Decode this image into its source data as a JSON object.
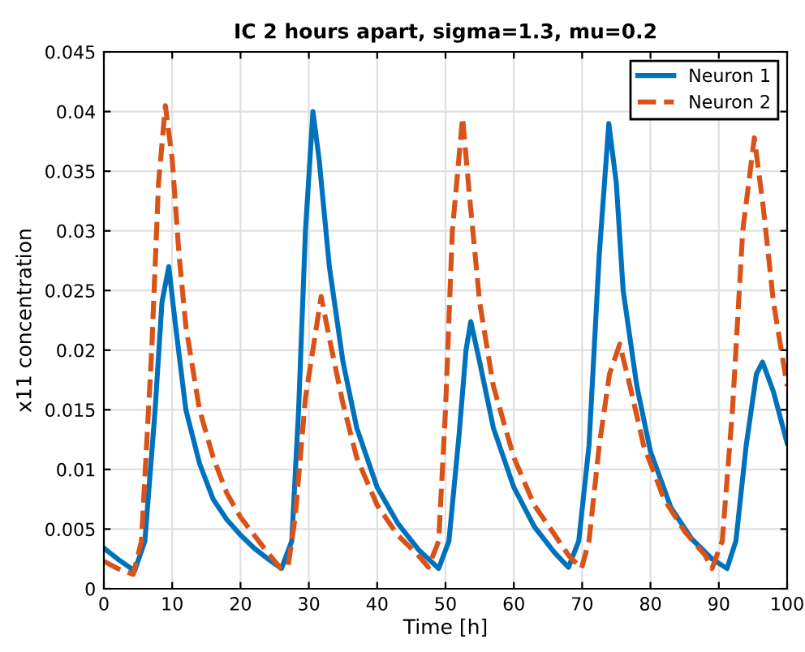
{
  "chart_data": {
    "type": "line",
    "title": "IC 2 hours apart, sigma=1.3, mu=0.2",
    "xlabel": "Time [h]",
    "ylabel": "x11 concentration",
    "xlim": [
      0,
      100
    ],
    "ylim": [
      0,
      0.045
    ],
    "xticks": [
      0,
      10,
      20,
      30,
      40,
      50,
      60,
      70,
      80,
      90,
      100
    ],
    "yticks": [
      0,
      0.005,
      0.01,
      0.015,
      0.02,
      0.025,
      0.03,
      0.035,
      0.04,
      0.045
    ],
    "grid": true,
    "legend": "top right",
    "series": [
      {
        "name": "Neuron 1",
        "color": "#0072bd",
        "line_style": "solid",
        "x": [
          0,
          2,
          4.5,
          6,
          7.5,
          8.5,
          9.5,
          10.5,
          12,
          14,
          16,
          18,
          20,
          22,
          24,
          26,
          27.5,
          28.5,
          29.5,
          30.6,
          31.5,
          33,
          35,
          37,
          40,
          43,
          46,
          49,
          50.5,
          52,
          53,
          53.7,
          55,
          57,
          60,
          63,
          66,
          68,
          69.5,
          71,
          72.5,
          73.9,
          75,
          76,
          78,
          80,
          83,
          86,
          89,
          91.2,
          92.5,
          94,
          95.5,
          96.4,
          98,
          100
        ],
        "values": [
          0.0034,
          0.0025,
          0.0015,
          0.004,
          0.015,
          0.024,
          0.027,
          0.022,
          0.015,
          0.0105,
          0.0075,
          0.0058,
          0.0045,
          0.0034,
          0.0025,
          0.0017,
          0.004,
          0.015,
          0.03,
          0.04,
          0.036,
          0.027,
          0.019,
          0.0135,
          0.0085,
          0.0055,
          0.0033,
          0.0017,
          0.004,
          0.013,
          0.02,
          0.0224,
          0.019,
          0.0135,
          0.0085,
          0.0052,
          0.003,
          0.0018,
          0.004,
          0.012,
          0.028,
          0.039,
          0.034,
          0.025,
          0.017,
          0.0115,
          0.0068,
          0.0042,
          0.0025,
          0.0017,
          0.004,
          0.012,
          0.018,
          0.019,
          0.0165,
          0.0122
        ]
      },
      {
        "name": "Neuron 2",
        "color": "#d95319",
        "line_style": "dashed",
        "x": [
          0,
          2,
          4.3,
          5.5,
          7,
          8,
          9,
          10,
          11,
          12,
          14,
          16,
          18,
          20,
          22,
          24,
          25.9,
          27,
          28,
          29.5,
          31.8,
          33,
          35,
          37,
          40,
          43,
          46,
          47.5,
          49,
          50,
          51,
          52.5,
          53.5,
          55,
          57,
          60,
          63,
          66,
          68,
          69.9,
          71,
          72.5,
          74,
          75.5,
          77,
          79,
          82,
          85,
          88,
          89,
          90.5,
          92,
          93.5,
          95.2,
          96.5,
          98,
          100
        ],
        "values": [
          0.0023,
          0.0017,
          0.0012,
          0.004,
          0.02,
          0.034,
          0.0405,
          0.036,
          0.028,
          0.022,
          0.015,
          0.011,
          0.008,
          0.006,
          0.0045,
          0.003,
          0.0017,
          0.002,
          0.006,
          0.016,
          0.0245,
          0.021,
          0.0155,
          0.011,
          0.007,
          0.0045,
          0.0028,
          0.0018,
          0.004,
          0.015,
          0.03,
          0.0395,
          0.033,
          0.024,
          0.017,
          0.011,
          0.007,
          0.0045,
          0.0028,
          0.0017,
          0.004,
          0.012,
          0.018,
          0.0205,
          0.017,
          0.012,
          0.0075,
          0.0048,
          0.0028,
          0.0017,
          0.004,
          0.015,
          0.03,
          0.0378,
          0.032,
          0.024,
          0.017
        ]
      }
    ]
  }
}
